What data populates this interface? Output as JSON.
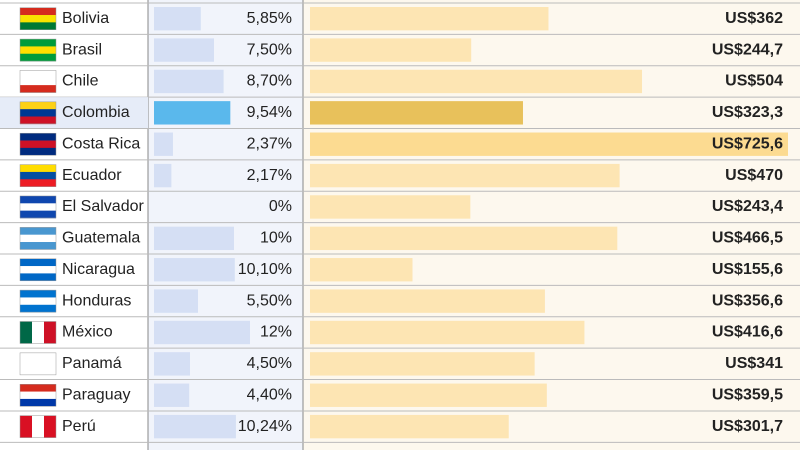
{
  "chart_data": {
    "type": "table-bars",
    "categories": [
      "Bolivia",
      "Brasil",
      "Chile",
      "Colombia",
      "Costa Rica",
      "Ecuador",
      "El Salvador",
      "Guatemala",
      "Nicaragua",
      "Honduras",
      "México",
      "Panamá",
      "Paraguay",
      "Perú"
    ],
    "series": [
      {
        "values": [
          5.85,
          7.5,
          8.7,
          9.54,
          2.37,
          2.17,
          0,
          10,
          10.1,
          5.5,
          12,
          4.5,
          4.4,
          10.24
        ],
        "value_labels": [
          "5,85%",
          "7,50%",
          "8,70%",
          "9,54%",
          "2,37%",
          "2,17%",
          "0%",
          "10%",
          "10,10%",
          "5,50%",
          "12%",
          "4,50%",
          "4,40%",
          "10,24%"
        ],
        "colors": [
          "#d5dff4",
          "#d5dff4",
          "#d5dff4",
          "#5ab8ec",
          "#d5dff4",
          "#d5dff4",
          "#d5dff4",
          "#d5dff4",
          "#d5dff4",
          "#d5dff4",
          "#d5dff4",
          "#d5dff4",
          "#d5dff4",
          "#d5dff4"
        ]
      },
      {
        "values": [
          362,
          244.7,
          504,
          323.3,
          725.6,
          470,
          243.4,
          466.5,
          155.6,
          356.6,
          416.6,
          341,
          359.5,
          301.7
        ],
        "value_labels": [
          "US$362",
          "US$244,7",
          "US$504",
          "US$323,3",
          "US$725,6",
          "US$470",
          "US$243,4",
          "US$466,5",
          "US$155,6",
          "US$356,6",
          "US$416,6",
          "US$341",
          "US$359,5",
          "US$301,7"
        ],
        "colors": [
          "#fde5b3",
          "#fde5b3",
          "#fde5b3",
          "#e8c15b",
          "#fcdb91",
          "#fde5b3",
          "#fde5b3",
          "#fde5b3",
          "#fde5b3",
          "#fde5b3",
          "#fde5b3",
          "#fde5b3",
          "#fde5b3",
          "#fde5b3"
        ]
      }
    ]
  }
}
